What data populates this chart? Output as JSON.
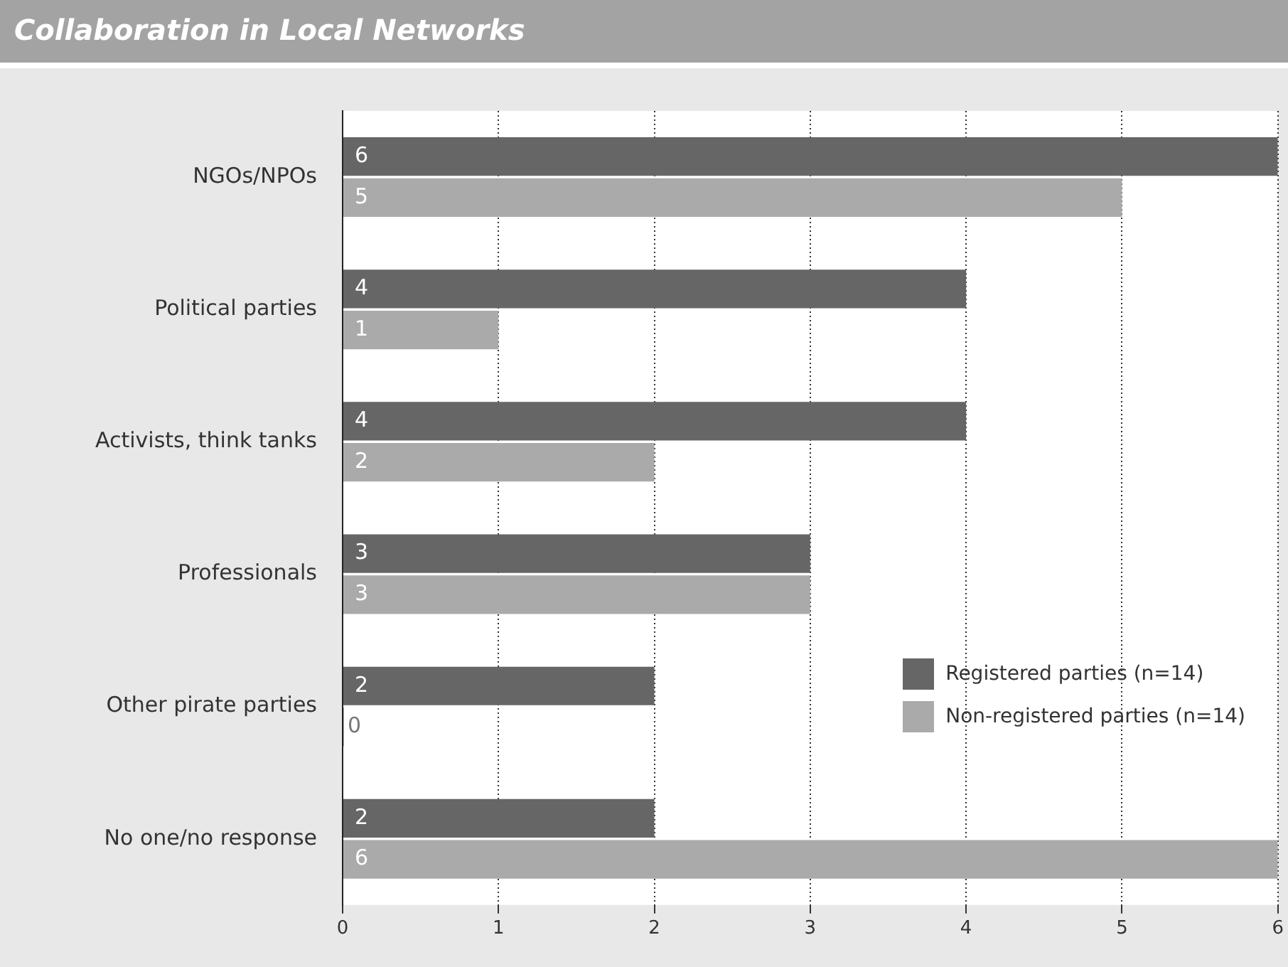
{
  "chart_data": {
    "type": "bar",
    "orientation": "horizontal",
    "title": "Collaboration in Local Networks",
    "categories": [
      "NGOs/NPOs",
      "Political parties",
      "Activists, think tanks",
      "Professionals",
      "Other pirate parties",
      "No one/no response"
    ],
    "series": [
      {
        "name": "Registered parties (n=14)",
        "color": "#666666",
        "values": [
          6,
          4,
          4,
          3,
          2,
          2
        ]
      },
      {
        "name": "Non-registered parties (n=14)",
        "color": "#aaaaaa",
        "values": [
          5,
          1,
          2,
          3,
          0,
          6
        ]
      }
    ],
    "xlim": [
      0,
      6
    ],
    "xticks": [
      0,
      1,
      2,
      3,
      4,
      5,
      6
    ],
    "grid": "x",
    "legend": "bottom right",
    "data_labels": true
  }
}
